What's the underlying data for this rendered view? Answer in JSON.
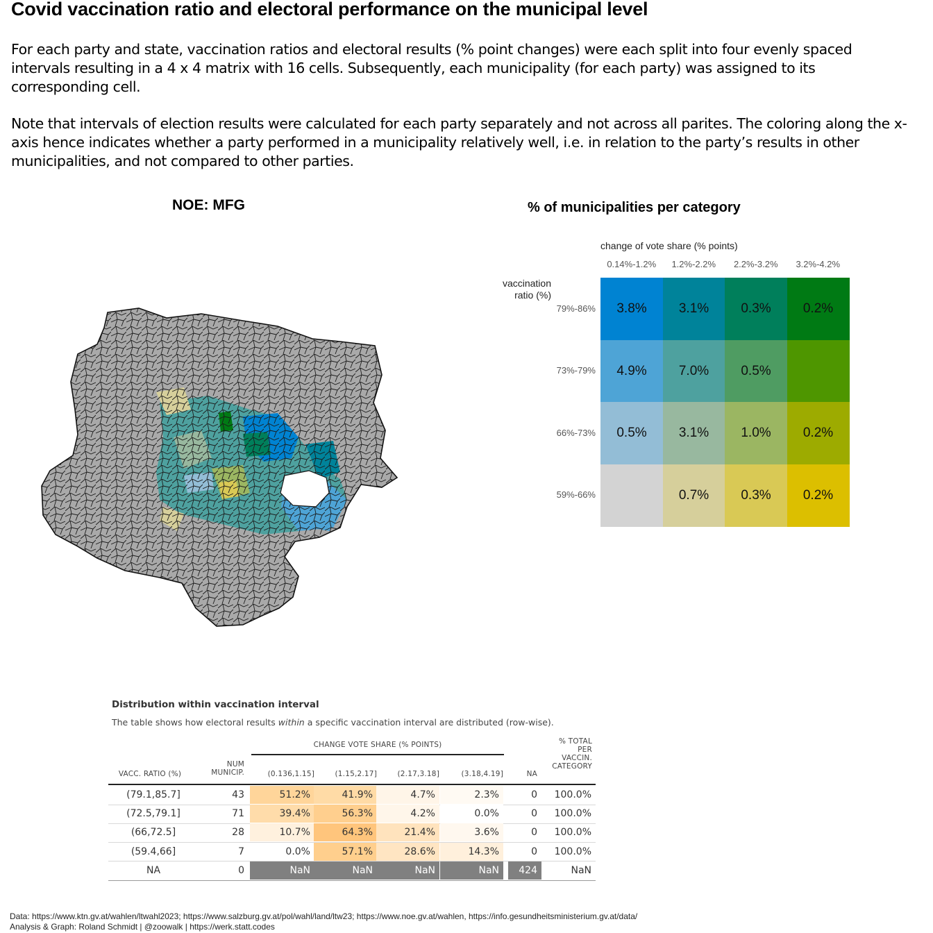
{
  "title": "Covid vaccination ratio and electoral performance on the municipal level",
  "intro_1": "For each party and state, vaccination ratios and electoral results (% point changes) were each split into four evenly spaced intervals resulting in a 4 x 4 matrix with 16 cells. Subsequently, each municipality (for each party) was assigned to its corresponding cell.",
  "intro_2": "Note that intervals of election results were calculated for each party separately and not across all parites. The coloring along the x-axis hence indicates whether a party performed in a municipality relatively well, i.e. in relation to the party’s results in other municipalities, and not compared to other parties.",
  "map_title": "NOE: MFG",
  "colors": {
    "missing_municipality": "#a9a9a9",
    "border": "#111111"
  },
  "chart_data": [
    {
      "type": "heatmap",
      "title": "% of municipalities per category",
      "xlabel": "change of vote share (% points)",
      "ylabel": "vaccination ratio (%)",
      "x_categories": [
        "0.14%-1.2%",
        "1.2%-2.2%",
        "2.2%-3.2%",
        "3.2%-4.2%"
      ],
      "y_categories": [
        "79%-86%",
        "73%-79%",
        "66%-73%",
        "59%-66%"
      ],
      "values": [
        [
          "3.8%",
          "3.1%",
          "0.3%",
          "0.2%"
        ],
        [
          "4.9%",
          "7.0%",
          "0.5%",
          ""
        ],
        [
          "0.5%",
          "3.1%",
          "1.0%",
          "0.2%"
        ],
        [
          "",
          "0.7%",
          "0.3%",
          "0.2%"
        ]
      ],
      "cell_colors": [
        [
          "#0083d2",
          "#00839a",
          "#007f5b",
          "#007a14"
        ],
        [
          "#4ea4d6",
          "#4ea19f",
          "#4f9c62",
          "#4e9600"
        ],
        [
          "#93bdd6",
          "#98b89f",
          "#9bb662",
          "#9dab00"
        ],
        [
          "#d3d3d3",
          "#d6cf9b",
          "#d9c955",
          "#dcbf00"
        ]
      ]
    },
    {
      "type": "table",
      "title": "Distribution within vaccination interval",
      "subtitle_pre": "The table shows how electoral results ",
      "subtitle_em": "within",
      "subtitle_post": " a specific vaccination interval are distributed (row-wise).",
      "spanner": "CHANGE VOTE SHARE (% POINTS)",
      "columns": [
        "VACC. RATIO (%)",
        "NUM MUNICIP.",
        "(0.136,1.15]",
        "(1.15,2.17]",
        "(2.17,3.18]",
        "(3.18,4.19]",
        "NA",
        "% TOTAL PER VACCIN. CATEGORY"
      ],
      "header_lines": {
        "num": [
          "NUM",
          "MUNICIP."
        ],
        "total": [
          "% TOTAL",
          "PER",
          "VACCIN.",
          "CATEGORY"
        ]
      },
      "rows": [
        [
          "(79.1,85.7]",
          "43",
          "51.2%",
          "41.9%",
          "4.7%",
          "2.3%",
          "0",
          "100.0%"
        ],
        [
          "(72.5,79.1]",
          "71",
          "39.4%",
          "56.3%",
          "4.2%",
          "0.0%",
          "0",
          "100.0%"
        ],
        [
          "(66,72.5]",
          "28",
          "10.7%",
          "64.3%",
          "21.4%",
          "3.6%",
          "0",
          "100.0%"
        ],
        [
          "(59.4,66]",
          "7",
          "0.0%",
          "57.1%",
          "28.6%",
          "14.3%",
          "0",
          "100.0%"
        ],
        [
          "NA",
          "0",
          "NaN",
          "NaN",
          "NaN",
          "NaN",
          "424",
          "NaN"
        ]
      ],
      "cell_fill": [
        [
          "#ffd59a",
          "#ffdba6",
          "#fff5e8",
          "#fffaf3"
        ],
        [
          "#ffdcaa",
          "#ffcf8e",
          "#fff6ea",
          "#ffffff"
        ],
        [
          "#fff1de",
          "#ffc57c",
          "#ffe3bd",
          "#fff8ef"
        ],
        [
          "#ffffff",
          "#ffcf8d",
          "#ffe5c2",
          "#fff0dc"
        ],
        [
          "#808080",
          "#808080",
          "#808080",
          "#808080"
        ]
      ],
      "na_fill": "#808080"
    }
  ],
  "footer_1": "Data: https://www.ktn.gv.at/wahlen/ltwahl2023; https://www.salzburg.gv.at/pol/wahl/land/ltw23; https://www.noe.gv.at/wahlen, https://info.gesundheitsministerium.gv.at/data/",
  "footer_2": "Analysis & Graph: Roland Schmidt | @zoowalk | https://werk.statt.codes"
}
